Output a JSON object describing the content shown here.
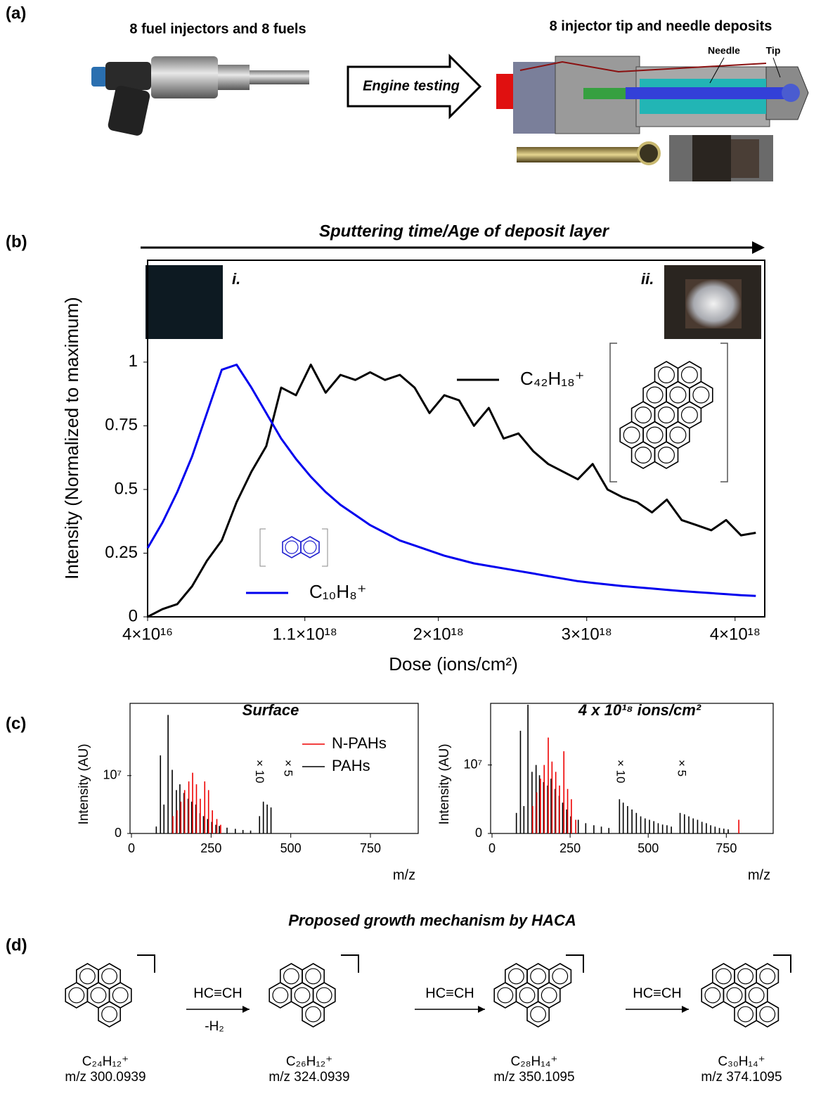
{
  "panel_labels": [
    "(a)",
    "(b)",
    "(c)",
    "(d)"
  ],
  "panel_a": {
    "left_caption": "8 fuel injectors and 8 fuels",
    "right_caption": "8 injector tip and needle deposits",
    "arrow_label": "Engine testing",
    "labels": [
      "Needle",
      "Tip"
    ]
  },
  "chart_data": [
    {
      "type": "line",
      "title": "Sputtering time/Age of deposit layer",
      "xlabel": "Dose (ions/cm²)",
      "ylabel": "Intensity (Normalized to maximum)",
      "insets": [
        "i.",
        "ii."
      ],
      "x": [
        4e+16,
        1.4e+17,
        2.4e+17,
        3.4e+17,
        4.4e+17,
        5.4e+17,
        6.4e+17,
        7.4e+17,
        8.4e+17,
        9.4e+17,
        1.04e+18,
        1.14e+18,
        1.24e+18,
        1.34e+18,
        1.44e+18,
        1.54e+18,
        1.64e+18,
        1.74e+18,
        1.84e+18,
        1.94e+18,
        2.04e+18,
        2.14e+18,
        2.24e+18,
        2.34e+18,
        2.44e+18,
        2.54e+18,
        2.64e+18,
        2.74e+18,
        2.84e+18,
        2.94e+18,
        3.04e+18,
        3.14e+18,
        3.24e+18,
        3.34e+18,
        3.44e+18,
        3.54e+18,
        3.64e+18,
        3.74e+18,
        3.84e+18,
        3.94e+18,
        4.04e+18,
        4.14e+18
      ],
      "series": [
        {
          "name": "C₄₂H₁₈⁺",
          "color": "#000000",
          "values": [
            0,
            0.03,
            0.05,
            0.12,
            0.22,
            0.3,
            0.45,
            0.57,
            0.67,
            0.9,
            0.87,
            0.99,
            0.88,
            0.95,
            0.93,
            0.96,
            0.93,
            0.95,
            0.9,
            0.8,
            0.87,
            0.85,
            0.75,
            0.82,
            0.7,
            0.72,
            0.65,
            0.6,
            0.57,
            0.54,
            0.6,
            0.5,
            0.47,
            0.45,
            0.41,
            0.46,
            0.38,
            0.36,
            0.34,
            0.38,
            0.32,
            0.33
          ]
        },
        {
          "name": "C₁₀H₈⁺",
          "color": "#0000ee",
          "values": [
            0.27,
            0.37,
            0.49,
            0.63,
            0.8,
            0.97,
            0.99,
            0.9,
            0.8,
            0.7,
            0.62,
            0.55,
            0.49,
            0.44,
            0.4,
            0.36,
            0.33,
            0.3,
            0.28,
            0.26,
            0.24,
            0.225,
            0.21,
            0.2,
            0.19,
            0.18,
            0.17,
            0.16,
            0.15,
            0.14,
            0.133,
            0.127,
            0.121,
            0.116,
            0.111,
            0.106,
            0.101,
            0.097,
            0.093,
            0.089,
            0.085,
            0.082
          ]
        }
      ],
      "xlim": [
        4e+16,
        4.2e+18
      ],
      "ylim": [
        0,
        1.4
      ],
      "xticks": [
        {
          "value": 4e+16,
          "label": "4×10¹⁶"
        },
        {
          "value": 1.1e+18,
          "label": "1.1×10¹⁸"
        },
        {
          "value": 2e+18,
          "label": "2×10¹⁸"
        },
        {
          "value": 3e+18,
          "label": "3×10¹⁸"
        },
        {
          "value": 4e+18,
          "label": "4×10¹⁸"
        }
      ],
      "yticks": [
        0,
        0.25,
        0.5,
        0.75,
        1
      ]
    },
    {
      "type": "stem",
      "title": "Surface",
      "xlabel": "m/z",
      "ylabel": "Intensity (AU)",
      "annotations": [
        "× 10",
        "× 5"
      ],
      "series": [
        {
          "name": "N-PAHs",
          "color": "#ee0000",
          "x": [
            130,
            143,
            155,
            167,
            180,
            192,
            204,
            216,
            230,
            242,
            254,
            268,
            280
          ],
          "values": [
            3000000.0,
            4000000.0,
            5500000.0,
            7500000.0,
            9000000.0,
            10500000.0,
            8500000.0,
            6000000.0,
            9000000.0,
            7500000.0,
            4000000.0,
            2500000.0,
            1500000.0
          ]
        },
        {
          "name": "PAHs",
          "color": "#000000",
          "x": [
            78,
            91,
            102,
            115,
            128,
            141,
            152,
            165,
            178,
            189,
            202,
            215,
            226,
            239,
            252,
            265,
            276,
            300,
            326,
            350,
            374,
            402,
            414,
            426,
            438
          ],
          "values": [
            1200000.0,
            13500000.0,
            5000000.0,
            20500000.0,
            11000000.0,
            7500000.0,
            8500000.0,
            7000000.0,
            6000000.0,
            5500000.0,
            5000000.0,
            3500000.0,
            3000000.0,
            2500000.0,
            2000000.0,
            1500000.0,
            1300000.0,
            1000000.0,
            800000.0,
            600000.0,
            500000.0,
            3000000.0,
            5500000.0,
            5000000.0,
            4500000.0
          ]
        }
      ],
      "xlim": [
        0,
        900
      ],
      "ylim": [
        0,
        22500000.0
      ],
      "xticks": [
        0,
        250,
        500,
        750
      ],
      "yticks": [
        0,
        {
          "value": 10000000.0,
          "label": "10⁷"
        }
      ]
    },
    {
      "type": "stem",
      "title": "4 x 10¹⁸ ions/cm²",
      "xlabel": "m/z",
      "ylabel": "Intensity (AU)",
      "annotations": [
        "× 10",
        "× 5"
      ],
      "series": [
        {
          "name": "N-PAHs",
          "color": "#ee0000",
          "x": [
            130,
            143,
            155,
            167,
            180,
            192,
            204,
            216,
            230,
            242,
            254,
            268,
            790
          ],
          "values": [
            4000000.0,
            6000000.0,
            8000000.0,
            10000000.0,
            14000000.0,
            10500000.0,
            9000000.0,
            7000000.0,
            12000000.0,
            6500000.0,
            5000000.0,
            2000000.0,
            2000000.0
          ]
        },
        {
          "name": "PAHs",
          "color": "#000000",
          "x": [
            78,
            91,
            102,
            115,
            128,
            141,
            152,
            165,
            178,
            189,
            202,
            215,
            226,
            239,
            252,
            276,
            300,
            326,
            350,
            374,
            408,
            420,
            434,
            448,
            462,
            476,
            490,
            504,
            518,
            532,
            546,
            560,
            574,
            602,
            616,
            630,
            644,
            658,
            672,
            686,
            700,
            714,
            728,
            742,
            756
          ],
          "values": [
            3000000.0,
            15000000.0,
            4000000.0,
            18800000.0,
            9000000.0,
            10000000.0,
            8500000.0,
            7500000.0,
            7000000.0,
            8000000.0,
            6500000.0,
            5500000.0,
            4500000.0,
            3500000.0,
            2500000.0,
            2000000.0,
            1500000.0,
            1200000.0,
            1000000.0,
            800000.0,
            5000000.0,
            4500000.0,
            4000000.0,
            3500000.0,
            3000000.0,
            2500000.0,
            2200000.0,
            2000000.0,
            1800000.0,
            1500000.0,
            1300000.0,
            1200000.0,
            1000000.0,
            3000000.0,
            2800000.0,
            2500000.0,
            2200000.0,
            2000000.0,
            1700000.0,
            1500000.0,
            1200000.0,
            1000000.0,
            800000.0,
            700000.0,
            600000.0
          ]
        }
      ],
      "xlim": [
        0,
        900
      ],
      "ylim": [
        0,
        19000000.0
      ],
      "xticks": [
        0,
        250,
        500,
        750
      ],
      "yticks": [
        0,
        {
          "value": 10000000.0,
          "label": "10⁷"
        }
      ]
    }
  ],
  "panel_d": {
    "title": "Proposed growth mechanism by HACA",
    "reagents": [
      "HC≡CH",
      "HC≡CH",
      "HC≡CH"
    ],
    "byproduct": "-H₂",
    "steps": [
      {
        "formula": "C₂₄H₁₂⁺",
        "mz": "m/z 300.0939"
      },
      {
        "formula": "C₂₆H₁₂⁺",
        "mz": "m/z 324.0939"
      },
      {
        "formula": "C₂₈H₁₄⁺",
        "mz": "m/z 350.1095"
      },
      {
        "formula": "C₃₀H₁₄⁺",
        "mz": "m/z 374.1095"
      }
    ]
  }
}
